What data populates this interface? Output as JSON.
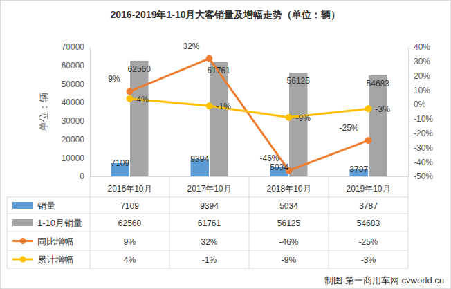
{
  "chart_data": {
    "type": "bar",
    "title": "2016-2019年1-10月大客销量及增幅走势（单位：辆）",
    "y_label": "单位：辆",
    "source": "制图:第一商用车网 cvworld.cn",
    "categories": [
      "2016年10月",
      "2017年10月",
      "2018年10月",
      "2019年10月"
    ],
    "series": [
      {
        "name": "销量",
        "type": "bar",
        "color": "#5b9bd5",
        "values": [
          7109,
          9394,
          5034,
          3787
        ]
      },
      {
        "name": "1-10月销量",
        "type": "bar",
        "color": "#a5a5a5",
        "values": [
          62560,
          61761,
          56125,
          54683
        ]
      },
      {
        "name": "同比增幅",
        "type": "line",
        "axis": "y2",
        "color": "#ed7d31",
        "marker": "circle",
        "values": [
          9,
          32,
          -46,
          -25
        ],
        "value_labels": [
          "9%",
          "32%",
          "-46%",
          "-25%"
        ]
      },
      {
        "name": "累计增幅",
        "type": "line",
        "axis": "y2",
        "color": "#ffc000",
        "marker": "circle",
        "values": [
          4,
          -1,
          -9,
          -3
        ],
        "value_labels": [
          "4%",
          "-1%",
          "-9%",
          "-3%"
        ]
      }
    ],
    "ylim": [
      0,
      70000
    ],
    "yticks": [
      0,
      10000,
      20000,
      30000,
      40000,
      50000,
      60000,
      70000
    ],
    "y2lim": [
      -50,
      40
    ],
    "y2ticks": [
      {
        "value": -50,
        "label": "-50%"
      },
      {
        "value": -40,
        "label": "-40%"
      },
      {
        "value": -30,
        "label": "-30%"
      },
      {
        "value": -20,
        "label": "-20%"
      },
      {
        "value": -10,
        "label": "-10%"
      },
      {
        "value": 0,
        "label": "0%"
      },
      {
        "value": 10,
        "label": "10%"
      },
      {
        "value": 20,
        "label": "20%"
      },
      {
        "value": 30,
        "label": "30%"
      },
      {
        "value": 40,
        "label": "40%"
      }
    ],
    "grid": false,
    "data_labels": true
  }
}
